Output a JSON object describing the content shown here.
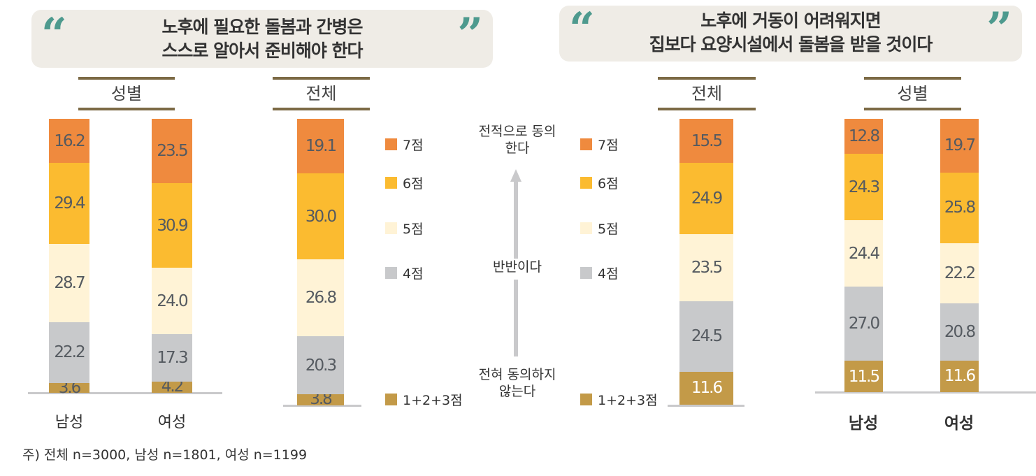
{
  "colors": {
    "7": "#ef8a3e",
    "6": "#fbbb30",
    "5": "#fff3d6",
    "4": "#c8c9cb",
    "1+2+3": "#c39a48",
    "quote": "#4e9a8e",
    "header_rule": "#7c6a45"
  },
  "left": {
    "title_line1": "노후에 필요한 돌봄과 간병은",
    "title_line2": "스스로 알아서 준비해야 한다",
    "gender_header": "성별",
    "total_header": "전체"
  },
  "right": {
    "title_line1": "노후에 거동이 어려워지면",
    "title_line2": "집보다 요양시설에서 돌봄을 받을 것이다",
    "gender_header": "성별",
    "total_header": "전체"
  },
  "legend": [
    "7점",
    "6점",
    "5점",
    "4점",
    "1+2+3점"
  ],
  "scale": {
    "top": "전적으로 동의한다",
    "middle": "반반이다",
    "bottom": "전혀 동의하지 않는다"
  },
  "footnote": "주) 전체 n=3000, 남성 n=1801, 여성 n=1199",
  "chart_data": [
    {
      "type": "bar",
      "stacked": true,
      "title": "노후에 필요한 돌봄과 간병은 스스로 알아서 준비해야 한다",
      "categories": [
        "남성",
        "여성",
        "전체"
      ],
      "series": [
        {
          "name": "1+2+3점",
          "values": [
            3.6,
            4.2,
            3.8
          ]
        },
        {
          "name": "4점",
          "values": [
            22.2,
            17.3,
            20.3
          ]
        },
        {
          "name": "5점",
          "values": [
            28.7,
            24.0,
            26.8
          ]
        },
        {
          "name": "6점",
          "values": [
            29.4,
            30.9,
            30.0
          ]
        },
        {
          "name": "7점",
          "values": [
            16.2,
            23.5,
            19.1
          ]
        }
      ],
      "ylim": [
        0,
        100
      ],
      "legend_position": "right"
    },
    {
      "type": "bar",
      "stacked": true,
      "title": "노후에 거동이 어려워지면 집보다 요양시설에서 돌봄을 받을 것이다",
      "categories": [
        "전체",
        "남성",
        "여성"
      ],
      "series": [
        {
          "name": "1+2+3점",
          "values": [
            11.6,
            11.5,
            11.6
          ]
        },
        {
          "name": "4점",
          "values": [
            24.5,
            27.0,
            20.8
          ]
        },
        {
          "name": "5점",
          "values": [
            23.5,
            24.4,
            22.2
          ]
        },
        {
          "name": "6점",
          "values": [
            24.9,
            24.3,
            25.8
          ]
        },
        {
          "name": "7점",
          "values": [
            15.5,
            12.8,
            19.7
          ]
        }
      ],
      "ylim": [
        0,
        100
      ],
      "legend_position": "left"
    }
  ]
}
